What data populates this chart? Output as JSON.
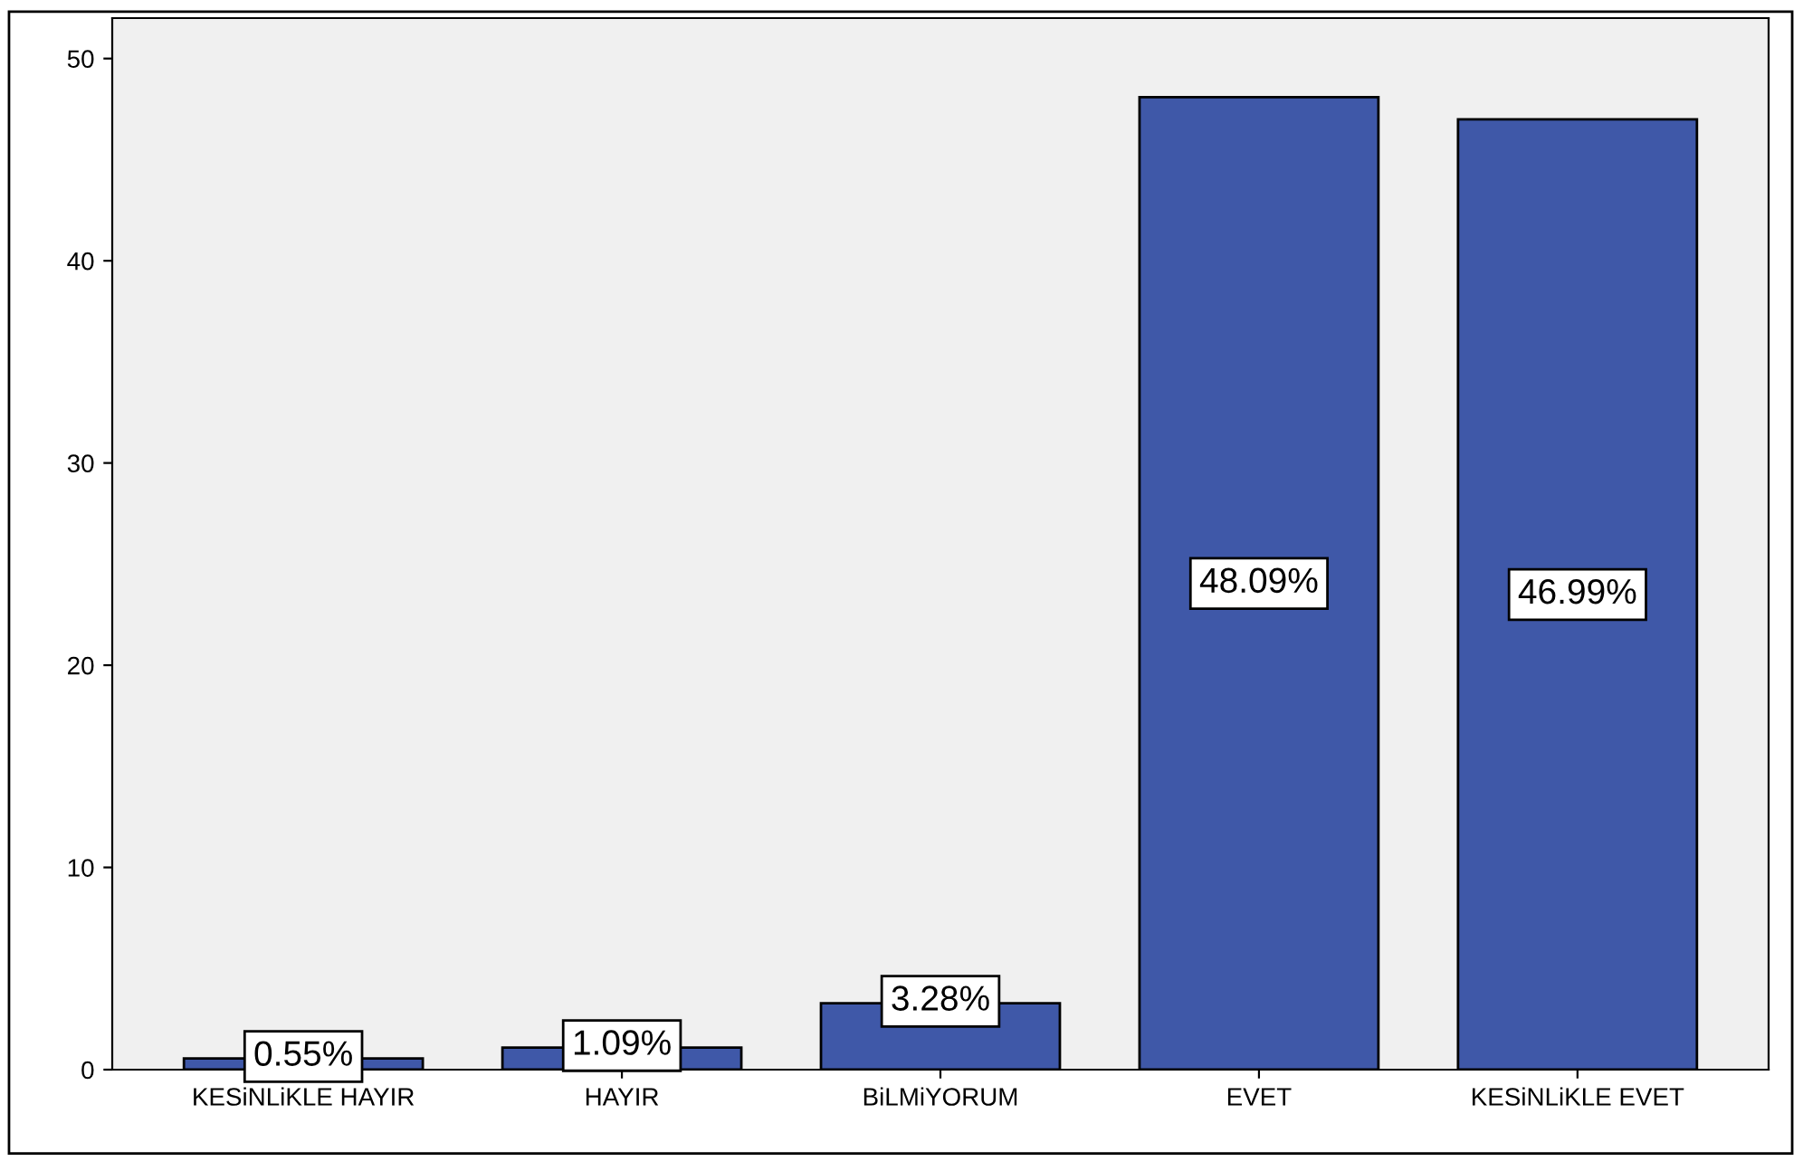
{
  "chart_data": {
    "type": "bar",
    "categories": [
      "KESiNLiKLE HAYIR",
      "HAYIR",
      "BiLMiYORUM",
      "EVET",
      "KESiNLiKLE EVET"
    ],
    "values": [
      0.55,
      1.09,
      3.28,
      48.09,
      46.99
    ],
    "value_labels": [
      "0.55%",
      "1.09%",
      "3.28%",
      "48.09%",
      "46.99%"
    ],
    "color": "#3f58a8",
    "ylim": [
      0,
      52
    ],
    "yticks": [
      0,
      10,
      20,
      30,
      40,
      50
    ],
    "grid": false,
    "legend": false
  }
}
